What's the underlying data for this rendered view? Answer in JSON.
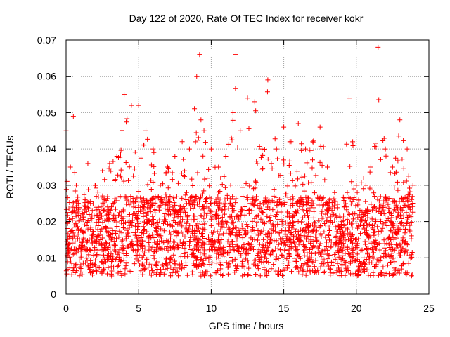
{
  "chart_data": {
    "type": "scatter",
    "title": "Day 122 of 2020, Rate Of TEC Index for receiver kokr",
    "xlabel": "GPS time / hours",
    "ylabel": "ROTI / TECUs",
    "xlim": [
      0,
      25
    ],
    "ylim": [
      0,
      0.07
    ],
    "x_ticks": [
      0,
      5,
      10,
      15,
      20,
      25
    ],
    "y_ticks": [
      0,
      0.01,
      0.02,
      0.03,
      0.04,
      0.05,
      0.06,
      0.07
    ],
    "x_tick_labels": [
      "0",
      "5",
      "10",
      "15",
      "20",
      "25"
    ],
    "y_tick_labels": [
      "0",
      "0.01",
      "0.02",
      "0.03",
      "0.04",
      "0.05",
      "0.06",
      "0.07"
    ],
    "grid": true,
    "marker": "plus",
    "color": "#ff0000",
    "series": [
      {
        "values_profile": [
          {
            "x": 0.0,
            "y": 0.045
          },
          {
            "x": 0.3,
            "y": 0.035
          },
          {
            "x": 0.5,
            "y": 0.049
          },
          {
            "x": 0.7,
            "y": 0.03
          },
          {
            "x": 1.0,
            "y": 0.021
          },
          {
            "x": 1.5,
            "y": 0.036
          },
          {
            "x": 2.0,
            "y": 0.03
          },
          {
            "x": 2.5,
            "y": 0.034
          },
          {
            "x": 3.0,
            "y": 0.036
          },
          {
            "x": 3.5,
            "y": 0.038
          },
          {
            "x": 4.0,
            "y": 0.055
          },
          {
            "x": 4.5,
            "y": 0.052
          },
          {
            "x": 5.0,
            "y": 0.052
          },
          {
            "x": 5.5,
            "y": 0.045
          },
          {
            "x": 6.0,
            "y": 0.04
          },
          {
            "x": 6.5,
            "y": 0.03
          },
          {
            "x": 7.0,
            "y": 0.035
          },
          {
            "x": 7.5,
            "y": 0.038
          },
          {
            "x": 8.0,
            "y": 0.042
          },
          {
            "x": 8.5,
            "y": 0.04
          },
          {
            "x": 9.0,
            "y": 0.06
          },
          {
            "x": 9.2,
            "y": 0.066
          },
          {
            "x": 9.5,
            "y": 0.045
          },
          {
            "x": 10.0,
            "y": 0.04
          },
          {
            "x": 10.5,
            "y": 0.035
          },
          {
            "x": 11.0,
            "y": 0.038
          },
          {
            "x": 11.5,
            "y": 0.05
          },
          {
            "x": 11.7,
            "y": 0.066
          },
          {
            "x": 12.0,
            "y": 0.045
          },
          {
            "x": 12.5,
            "y": 0.054
          },
          {
            "x": 13.0,
            "y": 0.053
          },
          {
            "x": 13.5,
            "y": 0.04
          },
          {
            "x": 13.9,
            "y": 0.059
          },
          {
            "x": 14.5,
            "y": 0.04
          },
          {
            "x": 15.0,
            "y": 0.046
          },
          {
            "x": 15.5,
            "y": 0.042
          },
          {
            "x": 16.0,
            "y": 0.047
          },
          {
            "x": 16.5,
            "y": 0.04
          },
          {
            "x": 17.0,
            "y": 0.042
          },
          {
            "x": 17.5,
            "y": 0.046
          },
          {
            "x": 18.0,
            "y": 0.035
          },
          {
            "x": 18.5,
            "y": 0.028
          },
          {
            "x": 19.0,
            "y": 0.02
          },
          {
            "x": 19.5,
            "y": 0.054
          },
          {
            "x": 20.0,
            "y": 0.03
          },
          {
            "x": 20.5,
            "y": 0.032
          },
          {
            "x": 21.0,
            "y": 0.035
          },
          {
            "x": 21.5,
            "y": 0.068
          },
          {
            "x": 22.0,
            "y": 0.04
          },
          {
            "x": 22.5,
            "y": 0.035
          },
          {
            "x": 23.0,
            "y": 0.048
          },
          {
            "x": 23.5,
            "y": 0.04
          },
          {
            "x": 23.9,
            "y": 0.03
          }
        ],
        "baseline_y": 0.012,
        "point_count": 2600
      }
    ]
  }
}
